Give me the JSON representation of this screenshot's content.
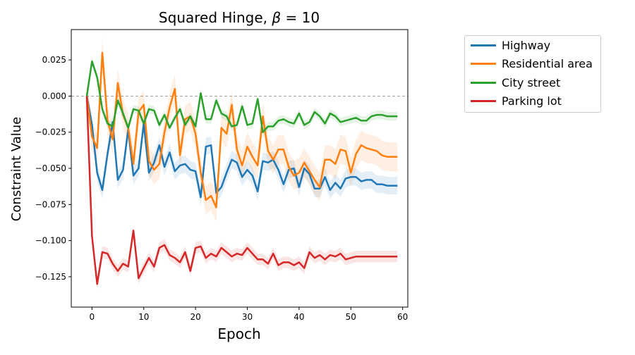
{
  "chart_data": {
    "type": "line",
    "title": "Squared Hinge, β = 10",
    "title_prefix": "Squared Hinge, ",
    "title_symbol": "β",
    "title_suffix": " =  10",
    "xlabel": "Epoch",
    "ylabel": "Constraint Value",
    "xlim": [
      -4,
      61
    ],
    "ylim": [
      -0.146,
      0.046
    ],
    "xticks": [
      0,
      10,
      20,
      30,
      40,
      50,
      60
    ],
    "xtick_labels": [
      "0",
      "10",
      "20",
      "30",
      "40",
      "50",
      "60"
    ],
    "yticks": [
      0.025,
      0.0,
      -0.025,
      -0.05,
      -0.075,
      -0.1,
      -0.125
    ],
    "ytick_labels": [
      "0.025",
      "0.000",
      "−0.025",
      "−0.050",
      "−0.075",
      "−0.100",
      "−0.125"
    ],
    "reference_line": 0.0,
    "grid": false,
    "legend_position": "outside-right-top",
    "x": [
      -1,
      0,
      1,
      2,
      3,
      4,
      5,
      6,
      7,
      8,
      9,
      10,
      11,
      12,
      13,
      14,
      15,
      16,
      17,
      18,
      19,
      20,
      21,
      22,
      23,
      24,
      25,
      26,
      27,
      28,
      29,
      30,
      31,
      32,
      33,
      34,
      35,
      36,
      37,
      38,
      39,
      40,
      41,
      42,
      43,
      44,
      45,
      46,
      47,
      48,
      49,
      50,
      51,
      52,
      53,
      54,
      55,
      56,
      57,
      58,
      59
    ],
    "series": [
      {
        "name": "Highway",
        "color": "#1f77b4",
        "values": [
          0,
          -0.02,
          -0.053,
          -0.065,
          -0.04,
          -0.018,
          -0.058,
          -0.051,
          -0.023,
          -0.055,
          -0.05,
          -0.019,
          -0.053,
          -0.046,
          -0.034,
          -0.049,
          -0.039,
          -0.052,
          -0.048,
          -0.047,
          -0.051,
          -0.052,
          -0.07,
          -0.035,
          -0.034,
          -0.067,
          -0.063,
          -0.053,
          -0.044,
          -0.046,
          -0.056,
          -0.051,
          -0.055,
          -0.066,
          -0.045,
          -0.046,
          -0.044,
          -0.051,
          -0.061,
          -0.051,
          -0.05,
          -0.063,
          -0.05,
          -0.054,
          -0.064,
          -0.064,
          -0.056,
          -0.065,
          -0.06,
          -0.064,
          -0.057,
          -0.056,
          -0.056,
          -0.059,
          -0.058,
          -0.058,
          -0.061,
          -0.061,
          -0.062,
          -0.062,
          -0.062
        ],
        "band": 0.006
      },
      {
        "name": "Residential area",
        "color": "#ff7f0e",
        "values": [
          0,
          -0.028,
          -0.036,
          0.03,
          -0.017,
          -0.03,
          0.009,
          -0.013,
          -0.022,
          -0.047,
          -0.011,
          -0.006,
          -0.045,
          -0.051,
          -0.047,
          -0.025,
          -0.008,
          0.005,
          -0.041,
          -0.016,
          -0.014,
          -0.026,
          -0.053,
          -0.072,
          -0.069,
          -0.077,
          -0.022,
          -0.026,
          -0.006,
          -0.037,
          -0.048,
          -0.035,
          -0.042,
          -0.048,
          -0.014,
          -0.038,
          -0.044,
          -0.037,
          -0.037,
          -0.049,
          -0.055,
          -0.053,
          -0.046,
          -0.052,
          -0.058,
          -0.063,
          -0.044,
          -0.044,
          -0.047,
          -0.037,
          -0.038,
          -0.053,
          -0.04,
          -0.034,
          -0.036,
          -0.037,
          -0.038,
          -0.041,
          -0.042,
          -0.042,
          -0.042
        ],
        "band": 0.01
      },
      {
        "name": "City street",
        "color": "#2ca02c",
        "values": [
          0,
          0.024,
          0.013,
          -0.009,
          -0.019,
          -0.021,
          -0.003,
          -0.012,
          -0.022,
          -0.009,
          -0.01,
          -0.019,
          -0.009,
          -0.01,
          -0.02,
          -0.013,
          -0.022,
          -0.015,
          -0.009,
          -0.02,
          -0.014,
          -0.021,
          0.002,
          -0.016,
          -0.016,
          -0.003,
          -0.012,
          -0.014,
          -0.021,
          -0.02,
          -0.007,
          -0.02,
          -0.019,
          -0.002,
          -0.025,
          -0.021,
          -0.021,
          -0.017,
          -0.016,
          -0.018,
          -0.019,
          -0.012,
          -0.02,
          -0.018,
          -0.011,
          -0.014,
          -0.019,
          -0.012,
          -0.014,
          -0.018,
          -0.017,
          -0.016,
          -0.015,
          -0.017,
          -0.017,
          -0.014,
          -0.013,
          -0.013,
          -0.014,
          -0.014,
          -0.014
        ],
        "band": 0.003
      },
      {
        "name": "Parking lot",
        "color": "#d62728",
        "values": [
          0,
          -0.097,
          -0.13,
          -0.108,
          -0.109,
          -0.116,
          -0.121,
          -0.116,
          -0.118,
          -0.093,
          -0.126,
          -0.119,
          -0.112,
          -0.118,
          -0.105,
          -0.103,
          -0.11,
          -0.112,
          -0.115,
          -0.108,
          -0.121,
          -0.105,
          -0.104,
          -0.112,
          -0.109,
          -0.111,
          -0.105,
          -0.108,
          -0.111,
          -0.109,
          -0.11,
          -0.105,
          -0.109,
          -0.113,
          -0.113,
          -0.116,
          -0.109,
          -0.117,
          -0.115,
          -0.115,
          -0.117,
          -0.115,
          -0.119,
          -0.108,
          -0.112,
          -0.11,
          -0.113,
          -0.11,
          -0.111,
          -0.109,
          -0.113,
          -0.112,
          -0.111,
          -0.111,
          -0.111,
          -0.111,
          -0.111,
          -0.111,
          -0.111,
          -0.111,
          -0.111
        ],
        "band": 0.004
      }
    ]
  }
}
